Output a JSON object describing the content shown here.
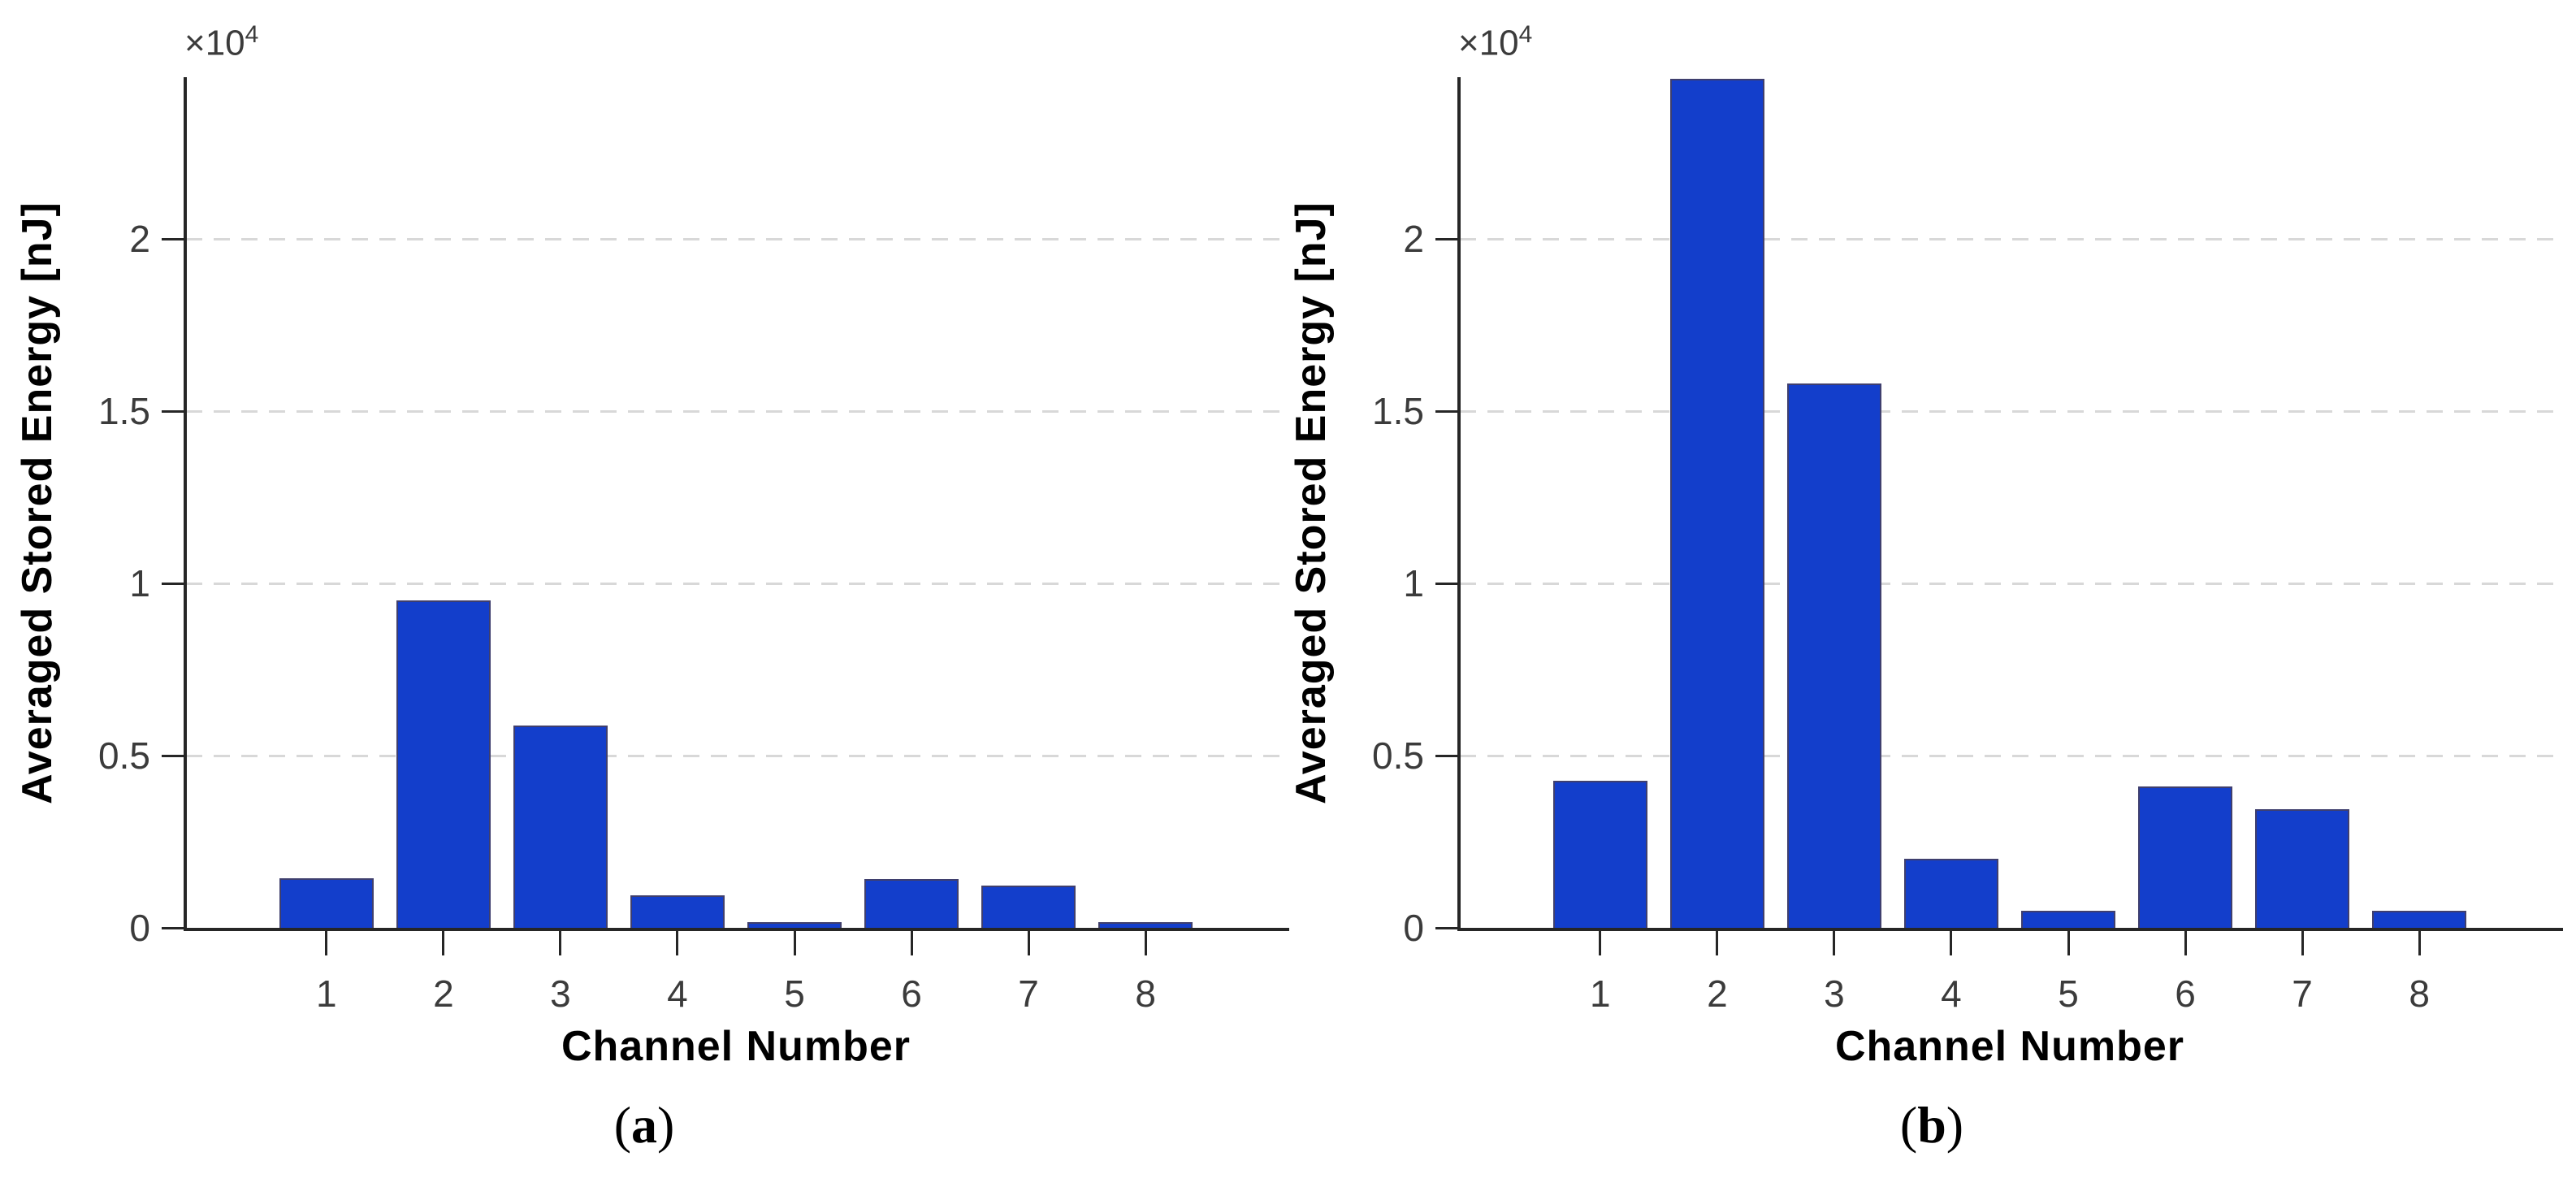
{
  "figure": {
    "background": "#ffffff",
    "panels": [
      {
        "id": "a",
        "ylabel": "Averaged Stored Energy [nJ]",
        "xlabel": "Channel Number",
        "multiplier_base": "×10",
        "multiplier_exponent": "4",
        "caption": {
          "open": "(",
          "letter": "a",
          "close": ")"
        }
      },
      {
        "id": "b",
        "ylabel": "Averaged Stored Energy [nJ]",
        "xlabel": "Channel Number",
        "multiplier_base": "×10",
        "multiplier_exponent": "4",
        "caption": {
          "open": "(",
          "letter": "b",
          "close": ")"
        }
      }
    ]
  },
  "chart_data": [
    {
      "type": "bar",
      "panel": "a",
      "title": "",
      "categories": [
        "1",
        "2",
        "3",
        "4",
        "5",
        "6",
        "7",
        "8"
      ],
      "values": [
        1450,
        9500,
        5870,
        950,
        170,
        1420,
        1230,
        170
      ],
      "xlabel": "Channel Number",
      "ylabel": "Averaged Stored Energy [nJ]",
      "y_unit_multiplier": 10000,
      "ylim": [
        0,
        24700
      ],
      "yticks": [
        0,
        5000,
        10000,
        15000,
        20000
      ],
      "ytick_labels": [
        "0",
        "0.5",
        "1",
        "1.5",
        "2"
      ],
      "y_axis_multiplier_label": "×10^4",
      "grid": "horizontal-dashed",
      "legend": "none",
      "bar_color": "#133ECB",
      "bar_edge_color": "#3F3F6E"
    },
    {
      "type": "bar",
      "panel": "b",
      "title": "",
      "categories": [
        "1",
        "2",
        "3",
        "4",
        "5",
        "6",
        "7",
        "8"
      ],
      "values": [
        4270,
        24650,
        15800,
        2000,
        500,
        4100,
        3450,
        500
      ],
      "xlabel": "Channel Number",
      "ylabel": "Averaged Stored Energy [nJ]",
      "y_unit_multiplier": 10000,
      "ylim": [
        0,
        24700
      ],
      "yticks": [
        0,
        5000,
        10000,
        15000,
        20000
      ],
      "ytick_labels": [
        "0",
        "0.5",
        "1",
        "1.5",
        "2"
      ],
      "y_axis_multiplier_label": "×10^4",
      "grid": "horizontal-dashed",
      "legend": "none",
      "bar_color": "#133ECB",
      "bar_edge_color": "#3F3F6E"
    }
  ],
  "style": {
    "axis_color": "#262626",
    "grid_color": "#D8D8D8",
    "tick_label_color": "#3B3B3B",
    "axis_label_color": "#000000"
  }
}
